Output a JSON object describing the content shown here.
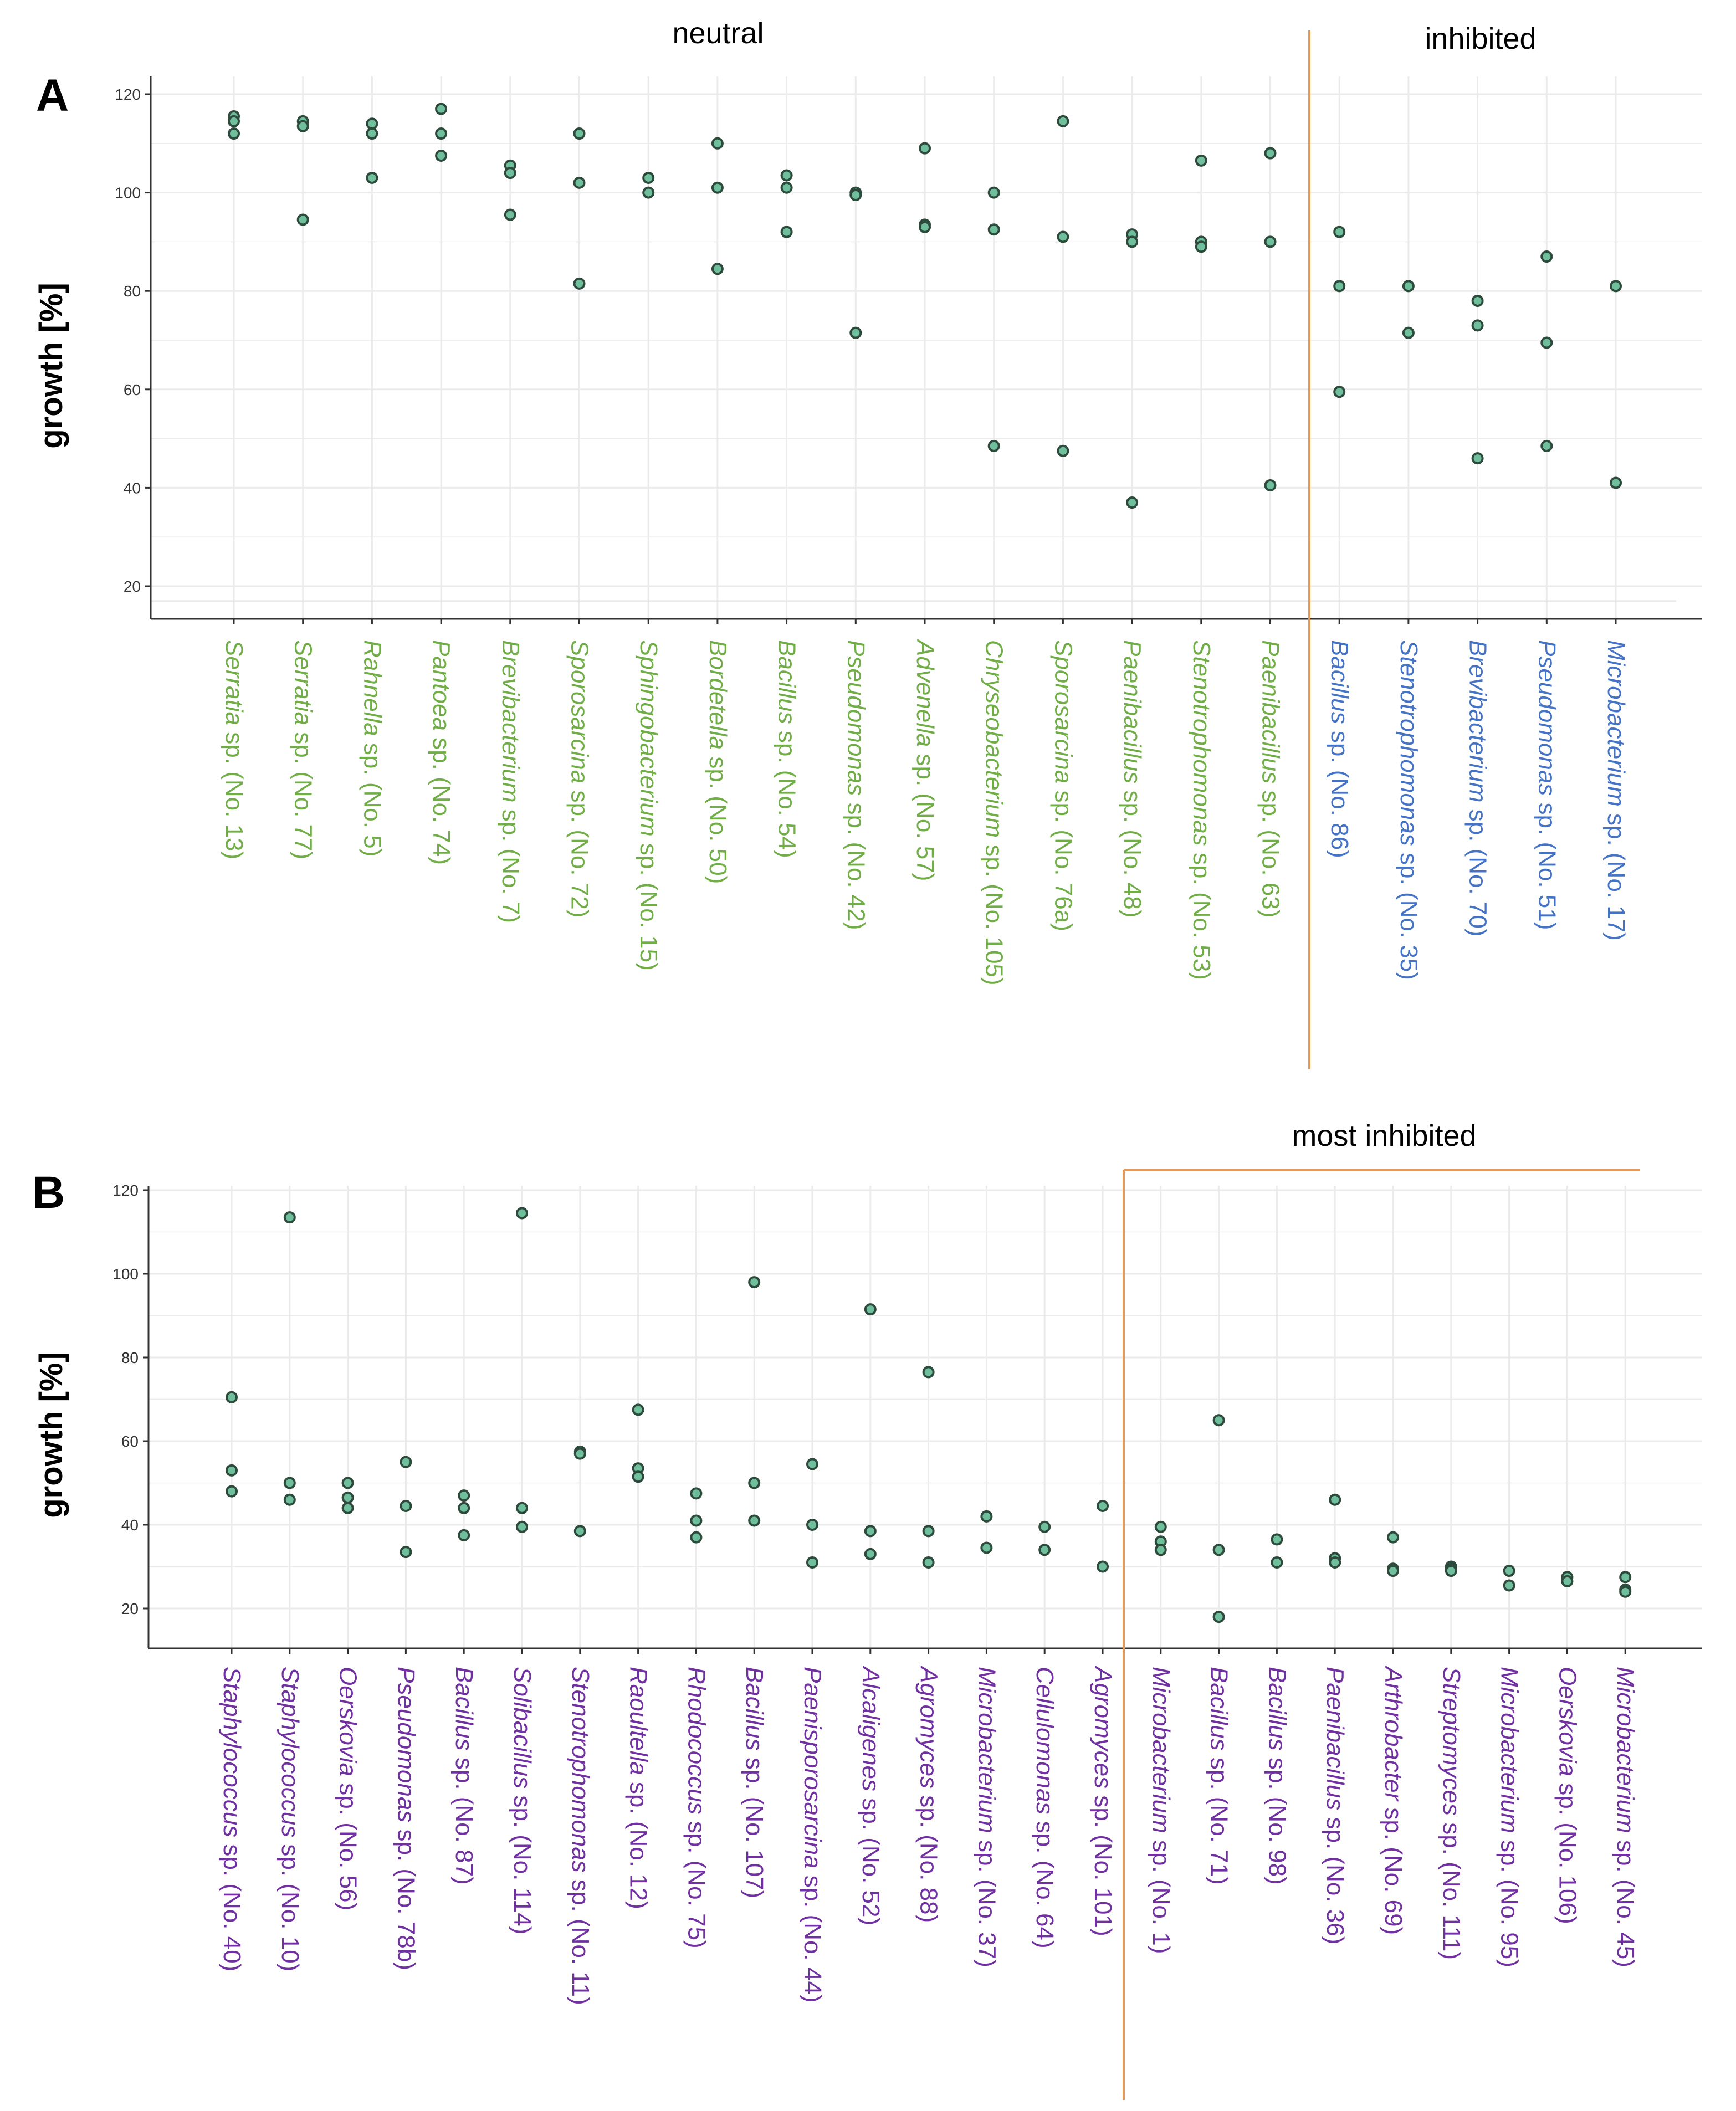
{
  "colors": {
    "neutral": "#70ad47",
    "inhibited": "#4472c4",
    "most_inhibited": "#7030a0",
    "divider": "#e59a5a",
    "point_fill": "#6fbf9c",
    "point_stroke": "#2e4a3c",
    "grid": "#ebebeb",
    "axis": "#333333"
  },
  "chart_data": [
    {
      "panel": "A",
      "type": "scatter",
      "ylabel": "growth [%]",
      "ylim": [
        14,
        122
      ],
      "yticks": [
        "20",
        "40",
        "60",
        "80",
        "100",
        "120"
      ],
      "groups": [
        {
          "label": "neutral",
          "from": 0,
          "to": 15
        },
        {
          "label": "inhibited",
          "from": 16,
          "to": 20
        }
      ],
      "categories": [
        {
          "genus": "Serratia",
          "rest": " sp. (No. 13)",
          "group": "neutral",
          "values": [
            115.5,
            114.5,
            112
          ]
        },
        {
          "genus": "Serratia",
          "rest": " sp. (No. 77)",
          "group": "neutral",
          "values": [
            114.5,
            113.5,
            94.5
          ]
        },
        {
          "genus": "Rahnella",
          "rest": " sp. (No. 5)",
          "group": "neutral",
          "values": [
            114,
            112,
            103
          ]
        },
        {
          "genus": "Pantoea",
          "rest": " sp. (No. 74)",
          "group": "neutral",
          "values": [
            117,
            112,
            107.5
          ]
        },
        {
          "genus": "Brevibacterium",
          "rest": " sp. (No. 7)",
          "group": "neutral",
          "values": [
            105.5,
            104,
            95.5
          ]
        },
        {
          "genus": "Sporosarcina",
          "rest": " sp. (No. 72)",
          "group": "neutral",
          "values": [
            112,
            102,
            81.5
          ]
        },
        {
          "genus": "Sphingobacterium",
          "rest": " sp. (No. 15)",
          "group": "neutral",
          "values": [
            103,
            100
          ]
        },
        {
          "genus": "Bordetella",
          "rest": " sp. (No. 50)",
          "group": "neutral",
          "values": [
            110,
            101,
            84.5
          ]
        },
        {
          "genus": "Bacillus",
          "rest": " sp. (No. 54)",
          "group": "neutral",
          "values": [
            103.5,
            101,
            92
          ]
        },
        {
          "genus": "Pseudomonas",
          "rest": " sp. (No. 42)",
          "group": "neutral",
          "values": [
            100,
            99.5,
            71.5
          ]
        },
        {
          "genus": "Advenella",
          "rest": " sp. (No. 57)",
          "group": "neutral",
          "values": [
            109,
            93.5,
            93
          ]
        },
        {
          "genus": "Chryseobacterium",
          "rest": " sp. (No. 105)",
          "group": "neutral",
          "values": [
            100,
            92.5,
            48.5
          ]
        },
        {
          "genus": "Sporosarcina",
          "rest": " sp. (No. 76a)",
          "group": "neutral",
          "values": [
            114.5,
            91,
            47.5
          ]
        },
        {
          "genus": "Paenibacillus",
          "rest": " sp. (No. 48)",
          "group": "neutral",
          "values": [
            91.5,
            90,
            37
          ]
        },
        {
          "genus": "Stenotrophomonas",
          "rest": " sp. (No. 53)",
          "group": "neutral",
          "values": [
            106.5,
            90,
            89
          ]
        },
        {
          "genus": "Paenibacillus",
          "rest": " sp. (No. 63)",
          "group": "neutral",
          "values": [
            108,
            90,
            40.5
          ]
        },
        {
          "genus": "Bacillus",
          "rest": " sp. (No. 86)",
          "group": "inhibited",
          "values": [
            92,
            81,
            59.5
          ]
        },
        {
          "genus": "Stenotrophomonas",
          "rest": " sp. (No. 35)",
          "group": "inhibited",
          "values": [
            81,
            71.5
          ]
        },
        {
          "genus": "Brevibacterium",
          "rest": " sp. (No. 70)",
          "group": "inhibited",
          "values": [
            78,
            73,
            46
          ]
        },
        {
          "genus": "Pseudomonas",
          "rest": " sp. (No. 51)",
          "group": "inhibited",
          "values": [
            87,
            69.5,
            48.5
          ]
        },
        {
          "genus": "Microbacterium",
          "rest": " sp. (No. 17)",
          "group": "inhibited",
          "values": [
            81,
            41
          ]
        }
      ]
    },
    {
      "panel": "B",
      "type": "scatter",
      "ylabel": "growth [%]",
      "ylim": [
        11,
        122
      ],
      "yticks": [
        "20",
        "40",
        "60",
        "80",
        "100",
        "120"
      ],
      "groups": [
        {
          "label": "most inhibited",
          "from": 16,
          "to": 24
        }
      ],
      "categories": [
        {
          "genus": "Staphylococcus",
          "rest": " sp. (No. 40)",
          "group": "most_inhibited",
          "values": [
            70.5,
            53,
            48
          ]
        },
        {
          "genus": "Staphylococcus",
          "rest": " sp. (No. 10)",
          "group": "most_inhibited",
          "values": [
            113.5,
            50,
            46
          ]
        },
        {
          "genus": "Oerskovia",
          "rest": " sp. (No. 56)",
          "group": "most_inhibited",
          "values": [
            50,
            46.5,
            44
          ]
        },
        {
          "genus": "Pseudomonas",
          "rest": " sp. (No. 78b)",
          "group": "most_inhibited",
          "values": [
            55,
            44.5,
            33.5
          ]
        },
        {
          "genus": "Bacillus",
          "rest": " sp. (No. 87)",
          "group": "most_inhibited",
          "values": [
            47,
            44,
            37.5
          ]
        },
        {
          "genus": "Solibacillus",
          "rest": " sp. (No. 114)",
          "group": "most_inhibited",
          "values": [
            114.5,
            44,
            39.5
          ]
        },
        {
          "genus": "Stenotrophomonas",
          "rest": " sp. (No. 11)",
          "group": "most_inhibited",
          "values": [
            57.5,
            57,
            38.5
          ]
        },
        {
          "genus": "Raoultella",
          "rest": " sp. (No. 12)",
          "group": "most_inhibited",
          "values": [
            67.5,
            53.5,
            51.5
          ]
        },
        {
          "genus": "Rhodococcus",
          "rest": " sp. (No. 75)",
          "group": "most_inhibited",
          "values": [
            47.5,
            41,
            37
          ]
        },
        {
          "genus": "Bacillus",
          "rest": " sp. (No. 107)",
          "group": "most_inhibited",
          "values": [
            98,
            50,
            41
          ]
        },
        {
          "genus": "Paenisporosarcina",
          "rest": " sp. (No. 44)",
          "group": "most_inhibited",
          "values": [
            54.5,
            40,
            31
          ]
        },
        {
          "genus": "Alcaligenes",
          "rest": " sp. (No. 52)",
          "group": "most_inhibited",
          "values": [
            91.5,
            38.5,
            33
          ]
        },
        {
          "genus": "Agromyces",
          "rest": " sp. (No. 88)",
          "group": "most_inhibited",
          "values": [
            76.5,
            38.5,
            31
          ]
        },
        {
          "genus": "Microbacterium",
          "rest": " sp. (No. 37)",
          "group": "most_inhibited",
          "values": [
            42,
            34.5
          ]
        },
        {
          "genus": "Cellulomonas",
          "rest": " sp. (No. 64)",
          "group": "most_inhibited",
          "values": [
            39.5,
            34
          ]
        },
        {
          "genus": "Agromyces",
          "rest": " sp. (No. 101)",
          "group": "most_inhibited",
          "values": [
            44.5,
            30
          ]
        },
        {
          "genus": "Microbacterium",
          "rest": " sp. (No. 1)",
          "group": "most_inhibited",
          "values": [
            39.5,
            36,
            34
          ]
        },
        {
          "genus": "Bacillus",
          "rest": " sp. (No. 71)",
          "group": "most_inhibited",
          "values": [
            65,
            34,
            18
          ]
        },
        {
          "genus": "Bacillus",
          "rest": " sp. (No. 98)",
          "group": "most_inhibited",
          "values": [
            36.5,
            31
          ]
        },
        {
          "genus": "Paenibacillus",
          "rest": " sp. (No. 36)",
          "group": "most_inhibited",
          "values": [
            46,
            32,
            31
          ]
        },
        {
          "genus": "Arthrobacter",
          "rest": " sp. (No. 69)",
          "group": "most_inhibited",
          "values": [
            37,
            29.5,
            29
          ]
        },
        {
          "genus": "Streptomyces",
          "rest": " sp. (No. 111)",
          "group": "most_inhibited",
          "values": [
            30,
            29.5,
            29
          ]
        },
        {
          "genus": "Microbacterium",
          "rest": " sp. (No. 95)",
          "group": "most_inhibited",
          "values": [
            29,
            25.5
          ]
        },
        {
          "genus": "Oerskovia",
          "rest": " sp. (No. 106)",
          "group": "most_inhibited",
          "values": [
            27.5,
            26.5
          ]
        },
        {
          "genus": "Microbacterium",
          "rest": " sp. (No. 45)",
          "group": "most_inhibited",
          "values": [
            27.5,
            24.5,
            24
          ]
        }
      ]
    }
  ]
}
